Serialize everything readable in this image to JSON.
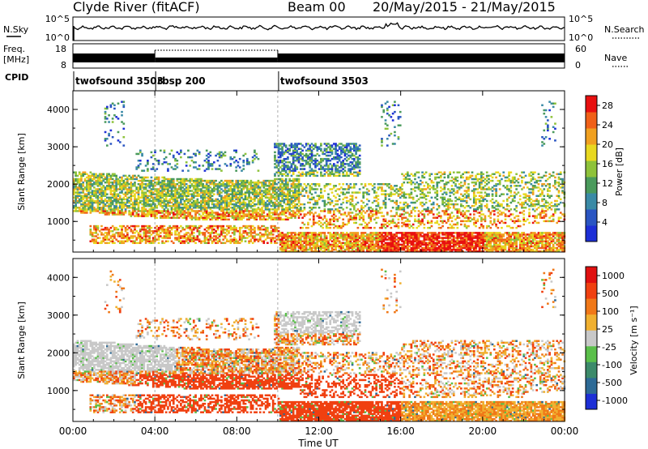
{
  "header": {
    "title": "Clyde River (fitACF)",
    "beam": "Beam 00",
    "dates": "20/May/2015 - 21/May/2015"
  },
  "nsky_panel": {
    "label": "N.Sky",
    "right_label": "N.Search",
    "left_ticks": [
      "10^5",
      "10^0"
    ],
    "right_ticks": [
      "10^5",
      "10^0"
    ]
  },
  "freq_panel": {
    "label_line1": "Freq.",
    "label_line2": "[MHz]",
    "right_label": "Nave",
    "left_ticks": [
      "18",
      "8"
    ],
    "right_ticks": [
      "60",
      "0"
    ]
  },
  "cpid": {
    "label": "CPID",
    "segments": [
      {
        "name": "twofsound 3503",
        "start_h": 0,
        "end_h": 4.0
      },
      {
        "name": "rbsp 200",
        "start_h": 4.0,
        "end_h": 10.0
      },
      {
        "name": "twofsound 3503",
        "start_h": 10.0,
        "end_h": 24.0
      }
    ]
  },
  "x_axis": {
    "label": "Time UT",
    "ticks": [
      "00:00",
      "04:00",
      "08:00",
      "12:00",
      "16:00",
      "20:00",
      "00:00"
    ],
    "range_h": [
      0,
      24
    ]
  },
  "chart_data": [
    {
      "type": "heatmap",
      "panel": "power",
      "ylabel": "Slant Range [km]",
      "yticks": [
        1000,
        2000,
        3000,
        4000
      ],
      "ylim": [
        180,
        4500
      ],
      "colorbar": {
        "label": "Power [dB]",
        "ticks": [
          "4",
          "8",
          "12",
          "16",
          "20",
          "24",
          "28"
        ],
        "range": [
          0,
          30
        ],
        "colors": [
          "#1d2fd6",
          "#2a55c2",
          "#3a8aa6",
          "#4a9a5c",
          "#8ec23a",
          "#e8d820",
          "#f0a020",
          "#f06018",
          "#e81010"
        ]
      }
    },
    {
      "type": "heatmap",
      "panel": "velocity",
      "ylabel": "Slant Range [km]",
      "yticks": [
        1000,
        2000,
        3000,
        4000
      ],
      "ylim": [
        180,
        4500
      ],
      "colorbar": {
        "label": "Velocity [m s⁻¹]",
        "ticks": [
          "1000",
          "500",
          "100",
          "25",
          "-25",
          "-100",
          "-500",
          "-1000"
        ],
        "colors": [
          "#1d2fd6",
          "#2d6a96",
          "#3c8a6a",
          "#5abf4a",
          "#c8c8c8",
          "#f0b030",
          "#f07818",
          "#f04010",
          "#e01010"
        ]
      }
    }
  ]
}
